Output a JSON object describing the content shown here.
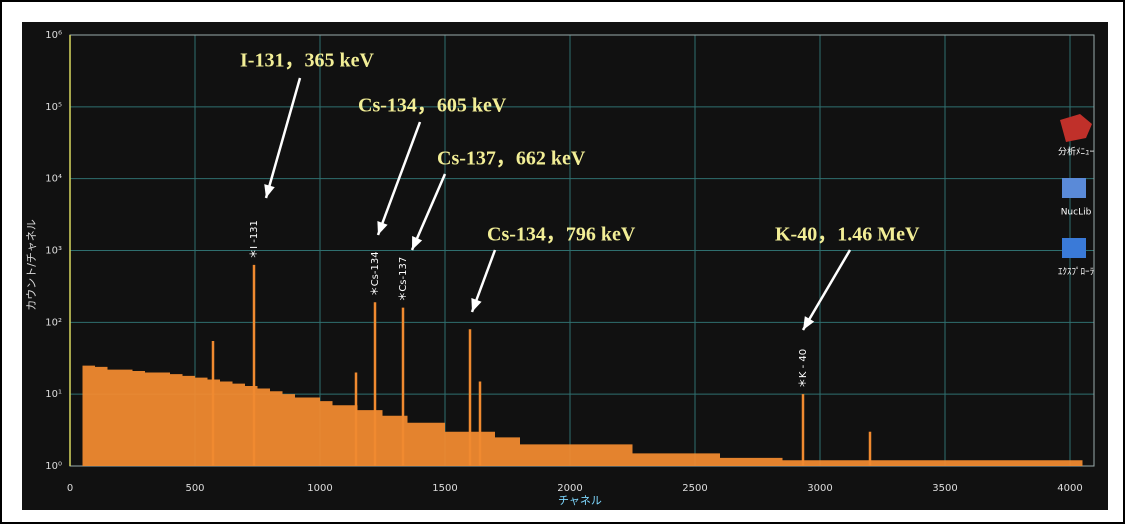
{
  "chart_data": {
    "type": "spectrum",
    "xlabel": "チャネル",
    "ylabel": "カウント/チャネル",
    "xlim": [
      0,
      4096
    ],
    "ylim": [
      1,
      1000000
    ],
    "log_y": true,
    "grid": true,
    "color": "#f08a30",
    "xticks": [
      0,
      500,
      1000,
      1500,
      2000,
      2500,
      3000,
      3500,
      4000
    ],
    "yticks": [
      {
        "value": 1,
        "label": "10⁰"
      },
      {
        "value": 10,
        "label": "10¹"
      },
      {
        "value": 100,
        "label": "10²"
      },
      {
        "value": 1000,
        "label": "10³"
      },
      {
        "value": 10000,
        "label": "10⁴"
      },
      {
        "value": 100000,
        "label": "10⁵"
      },
      {
        "value": 1000000,
        "label": "10⁶"
      }
    ],
    "continuum": {
      "x": [
        50,
        100,
        150,
        200,
        250,
        300,
        350,
        400,
        450,
        500,
        550,
        600,
        650,
        700,
        750,
        800,
        850,
        900,
        950,
        1000,
        1050,
        1100,
        1150,
        1200,
        1250,
        1300,
        1350,
        1400,
        1450,
        1500,
        1550,
        1600,
        1650,
        1700,
        1750,
        1800,
        1850,
        1900,
        1950,
        2000,
        2050,
        2100,
        2150,
        2200,
        2250,
        2300,
        2350,
        2400,
        2450,
        2500,
        2550,
        2600,
        2650,
        2700,
        2750,
        2800,
        2850,
        2900,
        2950,
        3000,
        3100,
        3200,
        3300,
        3400,
        3500,
        3600,
        3700,
        3800,
        3900,
        4000,
        4050
      ],
      "values": [
        25,
        24,
        22,
        22,
        21,
        20,
        20,
        19,
        18,
        17,
        16,
        15,
        14,
        13,
        12,
        11,
        10,
        9,
        9,
        8,
        7,
        7,
        6,
        6,
        5,
        5,
        4,
        4,
        4,
        3,
        3,
        3,
        3,
        2.5,
        2.5,
        2,
        2,
        2,
        2,
        2,
        2,
        2,
        2,
        2,
        1.5,
        1.5,
        1.5,
        1.5,
        1.5,
        1.5,
        1.5,
        1.3,
        1.3,
        1.3,
        1.3,
        1.3,
        1.2,
        1.2,
        1.2,
        1.2,
        1.2,
        1.2,
        1.2,
        1.2,
        1.2,
        1.2,
        1.2,
        1.2,
        1.2,
        1.2,
        1.2
      ]
    },
    "peaks": {
      "x": [
        572,
        736,
        1144,
        1220,
        1332,
        1600,
        1640,
        2932,
        3200
      ],
      "values": [
        55,
        630,
        20,
        190,
        160,
        80,
        15,
        10,
        3
      ],
      "labels": [
        null,
        "＊I -131",
        null,
        "＊Cs-134",
        "＊Cs-137",
        null,
        null,
        "＊K - 40",
        null
      ],
      "annotations": [
        null,
        "I-131，365 keV",
        null,
        "Cs-134，605 keV",
        "Cs-137，662 keV",
        "Cs-134，796 keV",
        null,
        "K-40，1.46 MeV",
        null
      ]
    }
  },
  "icons": [
    "分析ﾒﾆｭｰ",
    "NucLib",
    "ｴｸｽﾌﾟﾛｰﾗ"
  ]
}
